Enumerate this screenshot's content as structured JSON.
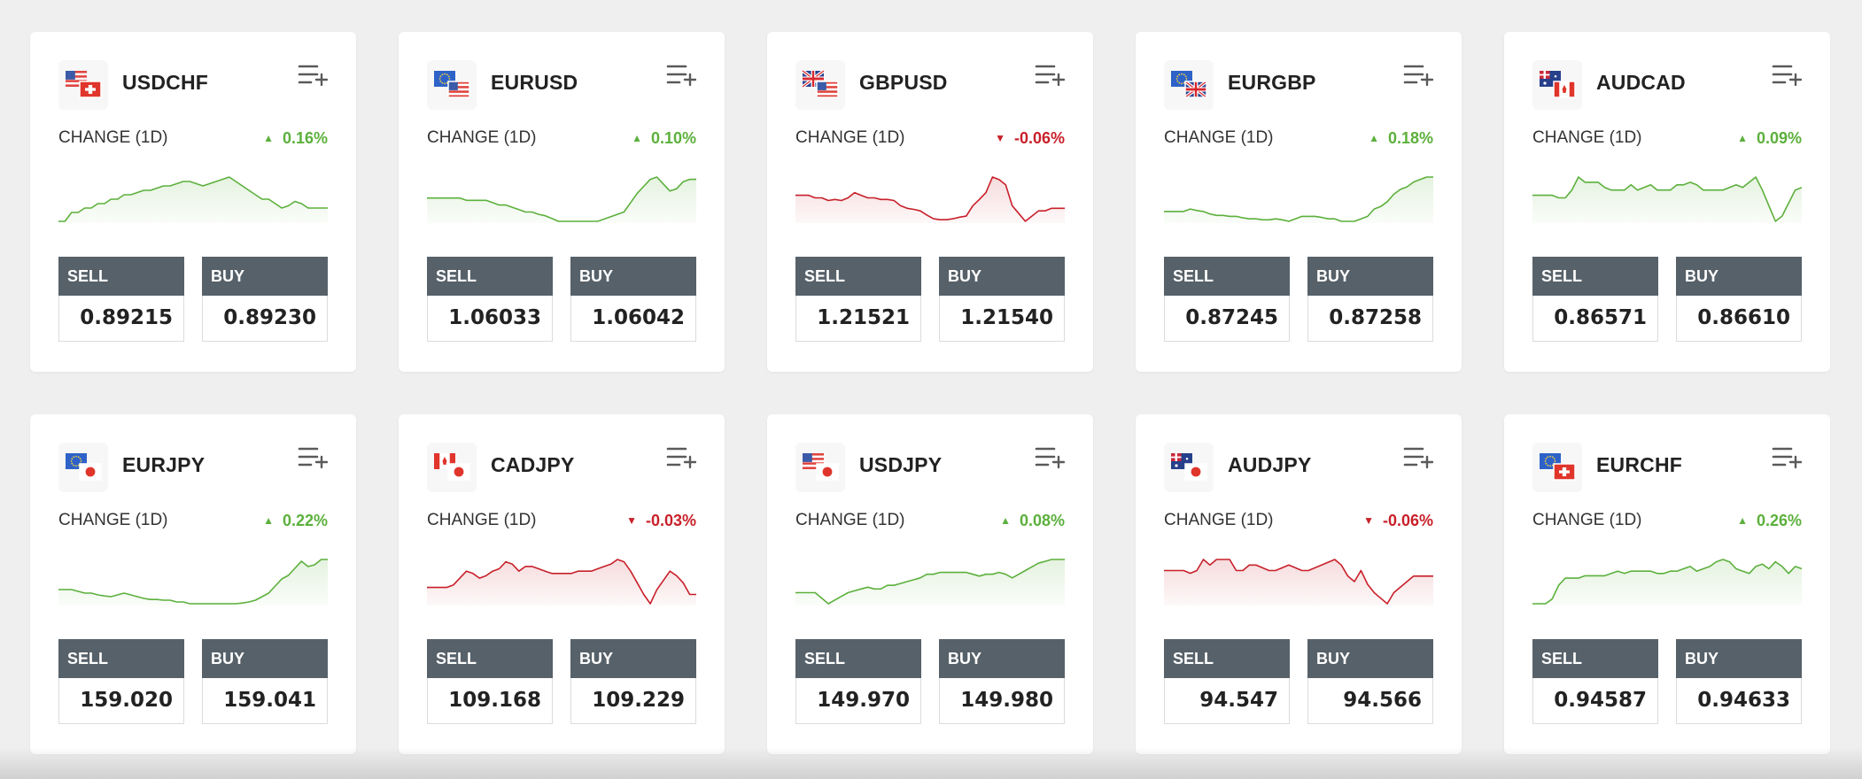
{
  "colors": {
    "up": "#5cb03c",
    "down": "#c8202a",
    "button_header": "#576169",
    "page_background": "#efefef"
  },
  "labels": {
    "change": "CHANGE (1D)",
    "sell": "SELL",
    "buy": "BUY"
  },
  "icons": {
    "watchlist": "add-to-list-icon",
    "up": "triangle-up-icon",
    "down": "triangle-down-icon"
  },
  "cards": [
    {
      "pair": "USDCHF",
      "flags": [
        "us",
        "ch"
      ],
      "change": "0.16%",
      "direction": "up",
      "sell": "0.89215",
      "buy": "0.89230",
      "spark": [
        0,
        0,
        2,
        2,
        3,
        3,
        4,
        4,
        5,
        5,
        6,
        6,
        6.5,
        7,
        7,
        7.5,
        8,
        8,
        8.5,
        9,
        9,
        8.5,
        8,
        8.5,
        9,
        9.5,
        10,
        9,
        8,
        7,
        6,
        5,
        5,
        4,
        3,
        3.5,
        4.5,
        4,
        3,
        3,
        3,
        3
      ]
    },
    {
      "pair": "EURUSD",
      "flags": [
        "eu",
        "us"
      ],
      "change": "0.10%",
      "direction": "up",
      "sell": "1.06033",
      "buy": "1.06042",
      "spark": [
        5,
        5,
        5,
        5,
        5,
        5,
        4.5,
        4.5,
        4.5,
        4.5,
        4,
        3.5,
        3.5,
        3,
        2.5,
        2,
        2,
        1.5,
        1.2,
        0.6,
        0,
        0,
        0,
        0,
        0,
        0,
        0,
        0.5,
        1,
        1.5,
        2,
        4,
        6,
        7.5,
        9,
        9.5,
        8,
        6.5,
        7,
        8.5,
        9,
        9
      ]
    },
    {
      "pair": "GBPUSD",
      "flags": [
        "gb",
        "us"
      ],
      "change": "-0.06%",
      "direction": "down",
      "sell": "1.21521",
      "buy": "1.21540",
      "spark": [
        5,
        5,
        5,
        4.5,
        4.5,
        4,
        4.2,
        4,
        4.5,
        5.5,
        5,
        4.5,
        4.5,
        4.2,
        4.2,
        4,
        3,
        2.5,
        2.3,
        2,
        1.2,
        0.5,
        0.3,
        0.3,
        0.5,
        0.8,
        1,
        3,
        4.2,
        5.5,
        8.5,
        8,
        7,
        3,
        1.5,
        0,
        1,
        2,
        2,
        2.5,
        2.5,
        2.5
      ]
    },
    {
      "pair": "EURGBP",
      "flags": [
        "eu",
        "gb"
      ],
      "change": "0.18%",
      "direction": "up",
      "sell": "0.87245",
      "buy": "0.87258",
      "spark": [
        2,
        2,
        2,
        2,
        2.5,
        2.2,
        2,
        1.5,
        1.2,
        1.2,
        1,
        1,
        0.7,
        0.5,
        0.5,
        0.3,
        0.3,
        0.5,
        0.3,
        0,
        0.5,
        1,
        1,
        1,
        0.8,
        0.5,
        0.5,
        0,
        0,
        0,
        0.5,
        1,
        2.5,
        3,
        4,
        5.5,
        6.5,
        7,
        8,
        8.5,
        9,
        9
      ]
    },
    {
      "pair": "AUDCAD",
      "flags": [
        "au",
        "ca"
      ],
      "change": "0.09%",
      "direction": "up",
      "sell": "0.86571",
      "buy": "0.86610",
      "spark": [
        5,
        5,
        5,
        5,
        4.5,
        4.5,
        6,
        8.5,
        7.5,
        7.5,
        7.5,
        6.5,
        6,
        6,
        6,
        7,
        6,
        6.5,
        7,
        6,
        6,
        6,
        7,
        7,
        7.5,
        7,
        6,
        6,
        6,
        6,
        6.5,
        7,
        6.5,
        7.5,
        8.5,
        6,
        3,
        0,
        1,
        3.5,
        6,
        6.5
      ]
    },
    {
      "pair": "EURJPY",
      "flags": [
        "eu",
        "jp"
      ],
      "change": "0.22%",
      "direction": "up",
      "sell": "159.020",
      "buy": "159.041",
      "spark": [
        4,
        4,
        4,
        3.5,
        3,
        3,
        2.5,
        2.2,
        2,
        2.5,
        3,
        2.5,
        2,
        1.5,
        1.2,
        1.2,
        1,
        1,
        0.5,
        0.5,
        0,
        0,
        0,
        0,
        0,
        0,
        0,
        0,
        0.2,
        0.5,
        1,
        2,
        3,
        5,
        7,
        8,
        10,
        12,
        10.5,
        11,
        12.5,
        12.5
      ]
    },
    {
      "pair": "CADJPY",
      "flags": [
        "ca",
        "jp"
      ],
      "change": "-0.03%",
      "direction": "down",
      "sell": "109.168",
      "buy": "109.229",
      "spark": [
        3.5,
        3.5,
        3.5,
        3.5,
        4,
        5.5,
        7,
        6.5,
        5.5,
        6,
        7,
        7.5,
        9,
        8.5,
        7,
        8,
        8,
        7.5,
        7,
        6.5,
        6.5,
        6.5,
        6.5,
        7,
        7,
        7,
        7.5,
        8,
        8.5,
        9.5,
        9,
        7,
        4.5,
        2,
        0,
        3,
        5,
        7,
        6,
        4.5,
        2,
        2
      ]
    },
    {
      "pair": "USDJPY",
      "flags": [
        "us",
        "jp"
      ],
      "change": "0.08%",
      "direction": "up",
      "sell": "149.970",
      "buy": "149.980",
      "spark": [
        3,
        3,
        3,
        3,
        1.5,
        0,
        1,
        2,
        3,
        3.5,
        4,
        4.5,
        4,
        4,
        5,
        5,
        5.5,
        6,
        6.5,
        7,
        8,
        8,
        8.5,
        8.5,
        8.5,
        8.5,
        8.5,
        8,
        7.5,
        8,
        8,
        8.5,
        8,
        7,
        8,
        9,
        10,
        11,
        11.5,
        12,
        12,
        12
      ]
    },
    {
      "pair": "AUDJPY",
      "flags": [
        "au",
        "jp"
      ],
      "change": "-0.06%",
      "direction": "down",
      "sell": "94.547",
      "buy": "94.566",
      "spark": [
        6,
        6,
        6,
        6,
        5.5,
        6,
        8,
        7,
        8,
        8,
        8,
        6,
        6,
        7,
        7,
        6.5,
        6,
        6,
        6.5,
        7,
        6.5,
        6,
        6,
        6.5,
        7,
        7.5,
        8,
        7,
        5,
        4,
        6,
        3.5,
        2,
        1,
        0,
        2,
        3,
        4,
        5,
        5,
        5,
        5
      ]
    },
    {
      "pair": "EURCHF",
      "flags": [
        "eu",
        "ch"
      ],
      "change": "0.26%",
      "direction": "up",
      "sell": "0.94587",
      "buy": "0.94633",
      "spark": [
        0,
        0,
        0,
        1,
        4,
        5.5,
        5.5,
        5.5,
        6,
        6,
        6,
        6,
        6.5,
        7,
        6.5,
        7,
        7,
        7,
        7,
        6.5,
        6.5,
        7,
        7,
        7.5,
        8,
        7,
        7.5,
        8,
        9,
        9.5,
        9,
        7.5,
        7,
        6.5,
        8,
        8.5,
        7.5,
        9,
        8,
        6.5,
        8,
        7.5
      ]
    }
  ]
}
